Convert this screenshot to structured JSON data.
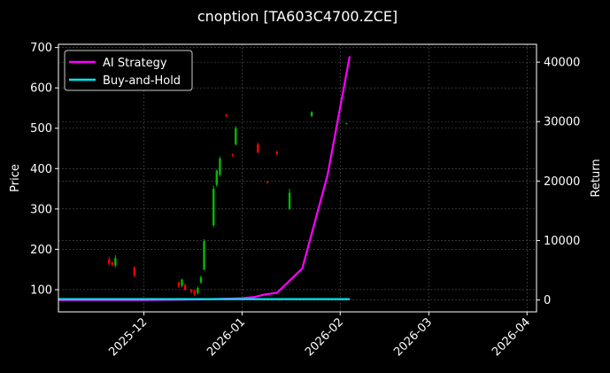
{
  "chart_data": {
    "type": "candlestick",
    "title": "cnoption [TA603C4700.ZCE]",
    "xlabel": "",
    "ylabel_left": "Price",
    "ylabel_right": "Return",
    "x_ticks": [
      "2025-12",
      "2026-01",
      "2026-02",
      "2026-03",
      "2026-04"
    ],
    "y_left_ticks": [
      "100",
      "200",
      "300",
      "400",
      "500",
      "600",
      "700"
    ],
    "y_right_ticks": [
      "0",
      "10000",
      "20000",
      "30000",
      "40000"
    ],
    "xlim": [
      "2025-11-04",
      "2026-04-04"
    ],
    "ylim_left": [
      45,
      708
    ],
    "ylim_right": [
      -2000,
      43000
    ],
    "grid": true,
    "legend_position": "top-left",
    "legend": [
      {
        "name": "AI Strategy",
        "color": "#ff00ff"
      },
      {
        "name": "Buy-and-Hold",
        "color": "#00e5ee"
      }
    ],
    "colors": {
      "up": "#00bb00",
      "down": "#ff0000",
      "background": "#000000",
      "text": "#ffffff",
      "grid": "#555555"
    },
    "candles": [
      {
        "date": "2025-11-20",
        "open": 175,
        "close": 165,
        "high": 182,
        "low": 160
      },
      {
        "date": "2025-11-21",
        "open": 167,
        "close": 162,
        "high": 170,
        "low": 158
      },
      {
        "date": "2025-11-22",
        "open": 160,
        "close": 178,
        "high": 185,
        "low": 155
      },
      {
        "date": "2025-11-28",
        "open": 155,
        "close": 135,
        "high": 158,
        "low": 130
      },
      {
        "date": "2025-12-12",
        "open": 118,
        "close": 108,
        "high": 120,
        "low": 104
      },
      {
        "date": "2025-12-13",
        "open": 110,
        "close": 125,
        "high": 127,
        "low": 106
      },
      {
        "date": "2025-12-14",
        "open": 112,
        "close": 100,
        "high": 115,
        "low": 97
      },
      {
        "date": "2025-12-16",
        "open": 100,
        "close": 95,
        "high": 102,
        "low": 90
      },
      {
        "date": "2025-12-17",
        "open": 98,
        "close": 88,
        "high": 100,
        "low": 84
      },
      {
        "date": "2025-12-18",
        "open": 92,
        "close": 104,
        "high": 108,
        "low": 88
      },
      {
        "date": "2025-12-19",
        "open": 118,
        "close": 130,
        "high": 135,
        "low": 115
      },
      {
        "date": "2025-12-20",
        "open": 150,
        "close": 220,
        "high": 225,
        "low": 148
      },
      {
        "date": "2025-12-23",
        "open": 260,
        "close": 350,
        "high": 358,
        "low": 255
      },
      {
        "date": "2025-12-24",
        "open": 360,
        "close": 395,
        "high": 398,
        "low": 355
      },
      {
        "date": "2025-12-25",
        "open": 385,
        "close": 425,
        "high": 430,
        "low": 380
      },
      {
        "date": "2025-12-27",
        "open": 532,
        "close": 530,
        "high": 536,
        "low": 528
      },
      {
        "date": "2025-12-29",
        "open": 435,
        "close": 432,
        "high": 437,
        "low": 430
      },
      {
        "date": "2025-12-30",
        "open": 460,
        "close": 500,
        "high": 505,
        "low": 457
      },
      {
        "date": "2026-01-06",
        "open": 460,
        "close": 440,
        "high": 465,
        "low": 438
      },
      {
        "date": "2026-01-09",
        "open": 367,
        "close": 365,
        "high": 369,
        "low": 363
      },
      {
        "date": "2026-01-12",
        "open": 442,
        "close": 436,
        "high": 444,
        "low": 434
      },
      {
        "date": "2026-01-16",
        "open": 300,
        "close": 340,
        "high": 350,
        "low": 298
      },
      {
        "date": "2026-01-23",
        "open": 530,
        "close": 540,
        "high": 542,
        "low": 528
      },
      {
        "date": "2026-02-03",
        "open": 512,
        "close": 512,
        "high": 513,
        "low": 511
      }
    ],
    "series": [
      {
        "name": "AI Strategy",
        "axis": "right",
        "x": [
          "2025-11-04",
          "2025-12-01",
          "2025-12-20",
          "2026-01-01",
          "2026-01-05",
          "2026-01-08",
          "2026-01-12",
          "2026-01-20",
          "2026-01-28",
          "2026-02-04"
        ],
        "values": [
          0,
          0,
          100,
          300,
          500,
          900,
          1200,
          5300,
          21000,
          41000
        ]
      },
      {
        "name": "Buy-and-Hold",
        "axis": "right",
        "x": [
          "2025-11-04",
          "2026-02-04"
        ],
        "values": [
          150,
          150
        ]
      }
    ]
  }
}
